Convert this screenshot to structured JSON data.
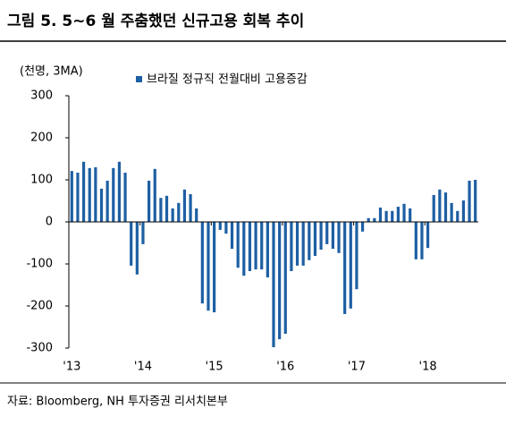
{
  "chart_data": {
    "type": "bar",
    "title": "그림 5. 5~6 월 주춤했던 신규고용 회복 추이",
    "y_label": "(천명, 3MA)",
    "source": "자료: Bloomberg, NH 투자증권 리서치본부",
    "series": [
      {
        "name": "브라질 정규직 전월대비 고용증감",
        "color": "#1d5fa3",
        "values": [
          121,
          117,
          143,
          128,
          130,
          79,
          98,
          128,
          143,
          117,
          -104,
          -125,
          -53,
          98,
          126,
          57,
          62,
          32,
          45,
          77,
          66,
          32,
          -194,
          -211,
          -215,
          -19,
          -28,
          -64,
          -109,
          -128,
          -117,
          -113,
          -113,
          -132,
          -298,
          -279,
          -266,
          -117,
          -104,
          -104,
          -91,
          -81,
          -66,
          -53,
          -64,
          -74,
          -219,
          -206,
          -160,
          -23,
          9,
          9,
          34,
          26,
          26,
          36,
          43,
          32,
          -89,
          -89,
          -62,
          64,
          77,
          70,
          45,
          26,
          51,
          98,
          100
        ]
      }
    ],
    "categories": [
      "'13",
      null,
      null,
      null,
      null,
      null,
      null,
      null,
      null,
      null,
      null,
      null,
      "'14",
      null,
      null,
      null,
      null,
      null,
      null,
      null,
      null,
      null,
      null,
      null,
      "'15",
      null,
      null,
      null,
      null,
      null,
      null,
      null,
      null,
      null,
      null,
      null,
      "'16",
      null,
      null,
      null,
      null,
      null,
      null,
      null,
      null,
      null,
      null,
      null,
      "'17",
      null,
      null,
      null,
      null,
      null,
      null,
      null,
      null,
      null,
      null,
      null,
      "'18",
      null,
      null,
      null,
      null,
      null,
      null,
      null,
      null
    ],
    "ylim": [
      -300,
      300
    ],
    "yticks": [
      -300,
      -200,
      -100,
      0,
      100,
      200,
      300
    ]
  }
}
